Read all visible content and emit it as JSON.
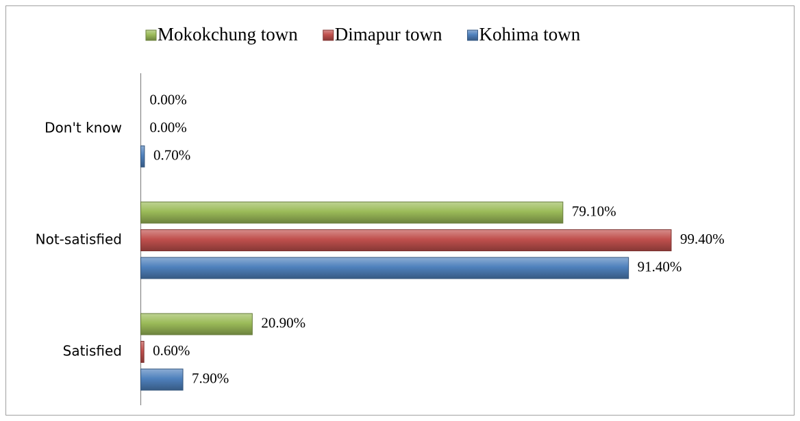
{
  "chart_data": {
    "type": "bar",
    "orientation": "horizontal",
    "categories": [
      "Don't know",
      "Not-satisfied",
      "Satisfied"
    ],
    "series": [
      {
        "name": "Mokokchung town",
        "color": "#9bbb59",
        "values": [
          0,
          79.1,
          20.9
        ],
        "value_labels": [
          "0.00%",
          "79.10%",
          "20.90%"
        ]
      },
      {
        "name": "Dimapur town",
        "color": "#c0504d",
        "values": [
          0,
          99.4,
          0.6
        ],
        "value_labels": [
          "0.00%",
          "99.40%",
          "0.60%"
        ]
      },
      {
        "name": "Kohima town",
        "color": "#4f81bd",
        "values": [
          0.7,
          91.4,
          7.9
        ],
        "value_labels": [
          "0.70%",
          "91.40%",
          "7.90%"
        ]
      }
    ],
    "legend": "top"
  }
}
